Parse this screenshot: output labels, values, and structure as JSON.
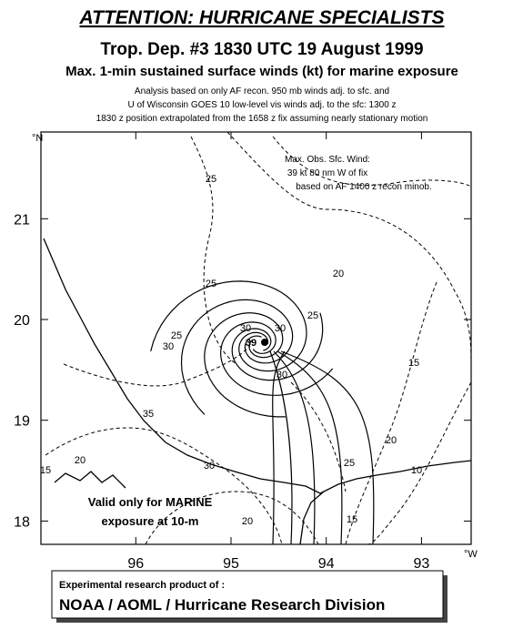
{
  "header": {
    "banner": "ATTENTION: HURRICANE SPECIALISTS",
    "title": "Trop. Dep. #3 1830 UTC 19 August 1999",
    "subtitle": "Max. 1-min sustained surface winds (kt) for marine exposure",
    "notes": [
      "Analysis based on only AF recon. 950 mb winds adj. to sfc. and",
      "U of Wisconsin GOES 10 low-level vis winds adj. to the sfc: 1300 z",
      "1830 z position extrapolated from the 1658 z fix assuming nearly stationary motion"
    ]
  },
  "map": {
    "lon_ticks": [
      96,
      95,
      94,
      93
    ],
    "lat_ticks": [
      21,
      20,
      19,
      18
    ],
    "lon_unit": "°W",
    "lat_unit": "°N",
    "annotation": [
      "Max. Obs. Sfc. Wind:",
      "39 kt  80 nm W of fix",
      "based on  AF 1400 z recon minob."
    ],
    "isotach_labels": [
      "25",
      "20",
      "25",
      "25",
      "25",
      "30",
      "30",
      "30",
      "39",
      "30",
      "15",
      "35",
      "20",
      "10",
      "25",
      "30",
      "20",
      "15",
      "15",
      "20"
    ],
    "valid_note": [
      "Valid only for MARINE",
      "exposure at 10-m"
    ]
  },
  "footer": {
    "line1": "Experimental research product of :",
    "line2": "NOAA / AOML / Hurricane Research Division"
  }
}
